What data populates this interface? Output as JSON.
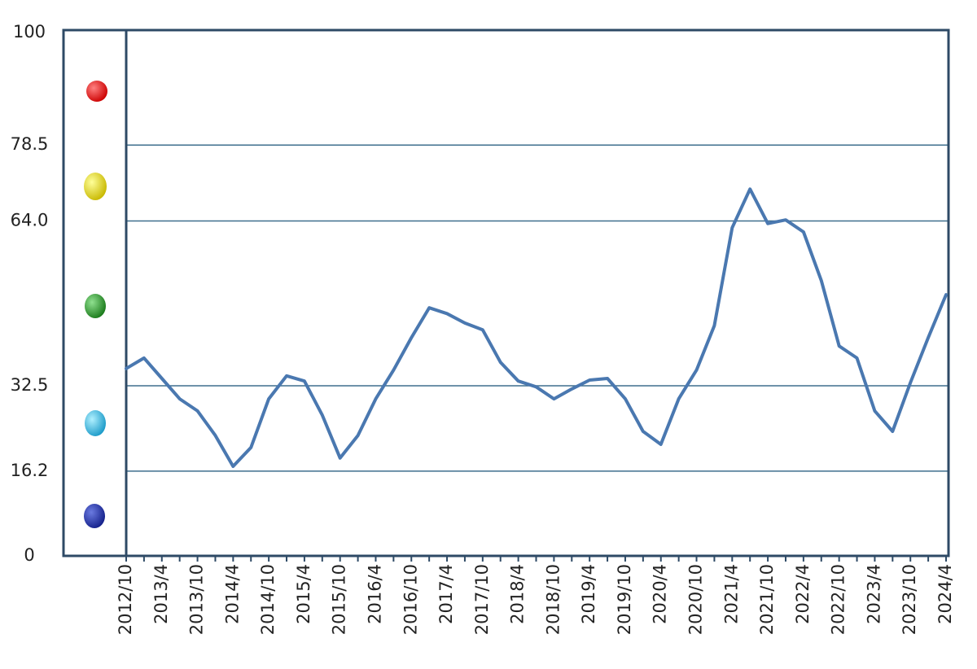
{
  "chart_data": {
    "type": "line",
    "categories": [
      "2012/10",
      null,
      "2013/4",
      null,
      "2013/10",
      null,
      "2014/4",
      null,
      "2014/10",
      null,
      "2015/4",
      null,
      "2015/10",
      null,
      "2016/4",
      null,
      "2016/10",
      null,
      "2017/4",
      null,
      "2017/10",
      null,
      "2018/4",
      null,
      "2018/10",
      null,
      "2019/4",
      null,
      "2019/10",
      null,
      "2020/4",
      null,
      "2020/10",
      null,
      "2021/4",
      null,
      "2021/10",
      null,
      "2022/4",
      null,
      "2022/10",
      null,
      "2023/4",
      null,
      "2023/10",
      null,
      "2024/4"
    ],
    "series": [
      {
        "color": "#4a78b0",
        "values": [
          35.8,
          37.8,
          33.9,
          30.0,
          27.7,
          23.0,
          17.1,
          20.7,
          30.0,
          34.4,
          33.4,
          26.9,
          18.7,
          23.0,
          30.0,
          35.5,
          41.7,
          47.4,
          46.3,
          44.5,
          43.2,
          37.0,
          33.4,
          32.3,
          30.0,
          31.9,
          33.6,
          33.9,
          30.0,
          23.8,
          21.3,
          30.0,
          35.5,
          44.0,
          62.7,
          70.1,
          63.5,
          64.2,
          61.9,
          52.6,
          40.1,
          37.8,
          27.7,
          23.8,
          33.1,
          41.7,
          49.9
        ]
      }
    ],
    "ylim": [
      0,
      100
    ],
    "yticks": [
      0,
      {
        "value": 16.2,
        "label": "16.2"
      },
      {
        "value": 32.5,
        "label": "32.5"
      },
      {
        "value": 64.0,
        "label": "64.0"
      },
      {
        "value": 78.5,
        "label": "78.5"
      },
      100
    ],
    "grid": true
  }
}
